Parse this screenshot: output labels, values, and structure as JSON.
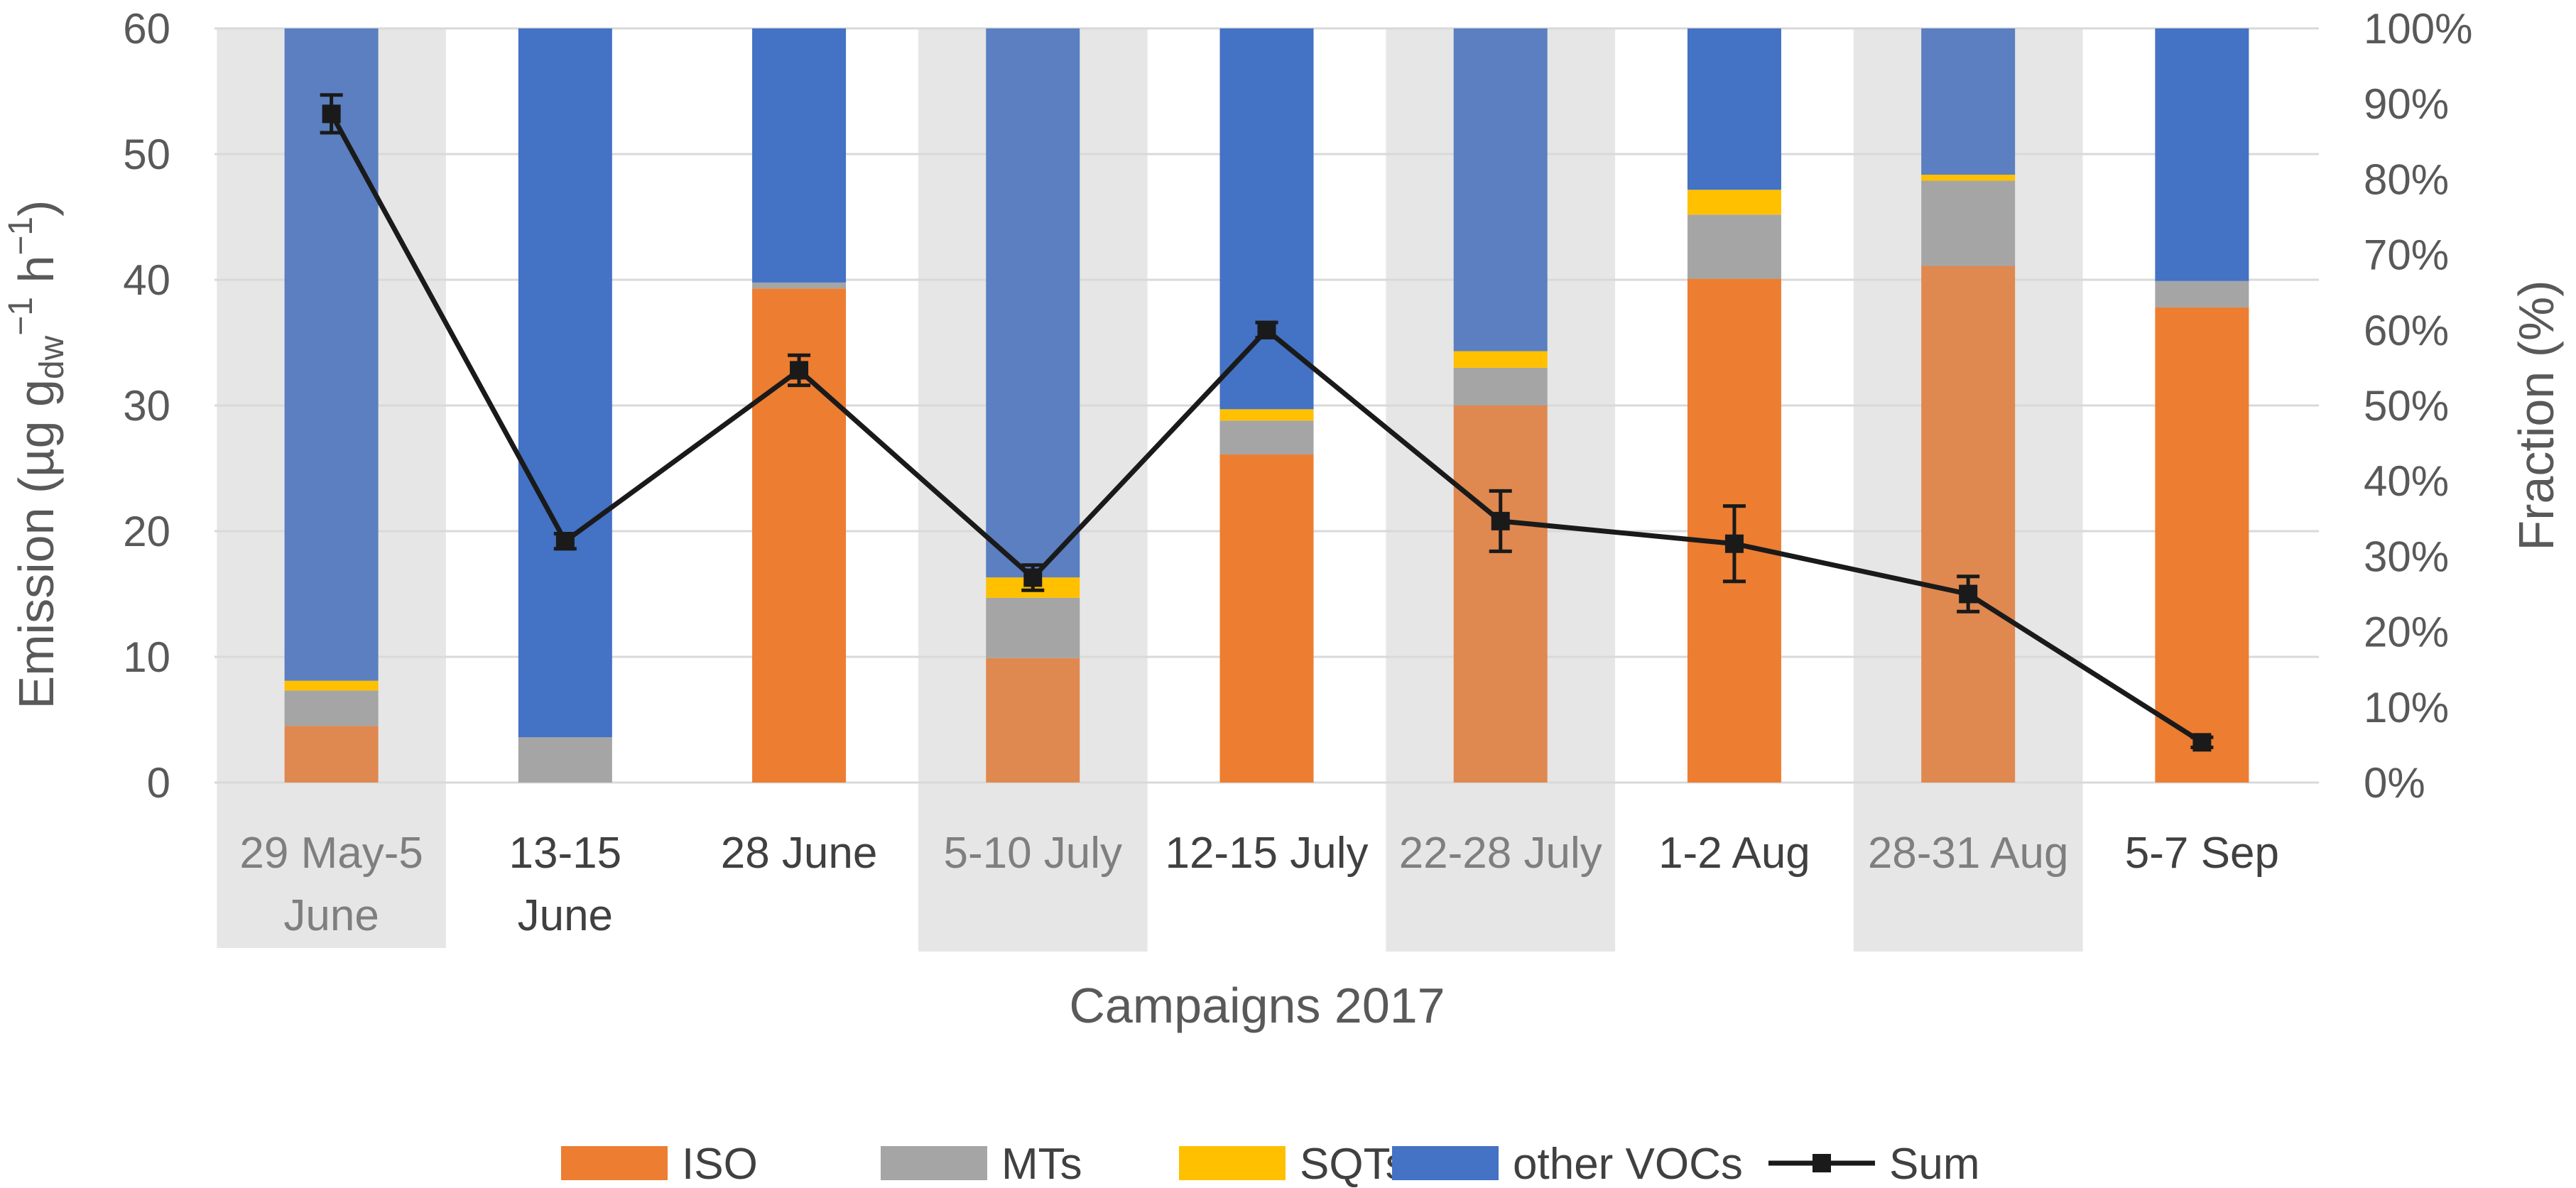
{
  "chart_data": {
    "type": "bar",
    "stacked": true,
    "xlabel": "Campaigns 2017",
    "ylabel": "Emission (µg g",
    "ylabel_sub": "dw",
    "ylabel_sup": "−1",
    "ylabel_unit": " h",
    "ylabel_sup2": "−1",
    "ylabel_close": ")",
    "y2label": "Fraction (%)",
    "ylim": [
      0,
      60
    ],
    "y2lim": [
      0,
      100
    ],
    "yticks": [
      "0",
      "10",
      "20",
      "30",
      "40",
      "50",
      "60"
    ],
    "y2ticks": [
      "0%",
      "10%",
      "20%",
      "30%",
      "40%",
      "50%",
      "60%",
      "70%",
      "80%",
      "90%",
      "100%"
    ],
    "categories": [
      [
        "29 May-5",
        "June"
      ],
      [
        "13-15",
        "June"
      ],
      [
        "28 June"
      ],
      [
        "5-10 July"
      ],
      [
        "12-15 July"
      ],
      [
        "22-28 July"
      ],
      [
        "1-2 Aug"
      ],
      [
        "28-31 Aug"
      ],
      [
        "5-7 Sep"
      ]
    ],
    "shaded": [
      true,
      false,
      false,
      true,
      false,
      true,
      false,
      true,
      false
    ],
    "series": [
      {
        "name": "ISO",
        "axis": "right",
        "values": [
          7.5,
          0,
          65.5,
          16.5,
          43.5,
          50,
          66.8,
          68.5,
          63
        ]
      },
      {
        "name": "MTs",
        "axis": "right",
        "values": [
          4.7,
          6,
          0.8,
          8,
          4.5,
          5,
          8.5,
          11.3,
          3.5
        ]
      },
      {
        "name": "SQTs",
        "axis": "right",
        "values": [
          1.3,
          0,
          0,
          2.7,
          1.5,
          2.2,
          3.3,
          0.8,
          0
        ]
      },
      {
        "name": "other VOCs",
        "axis": "right",
        "values": [
          86.5,
          94,
          33.7,
          72.8,
          50.5,
          42.8,
          21.4,
          19.4,
          33.5
        ]
      }
    ],
    "sum": {
      "name": "Sum",
      "axis": "left",
      "values": [
        53.2,
        19.2,
        32.8,
        16.3,
        36.0,
        20.8,
        19.0,
        15.0,
        3.2
      ],
      "errors": [
        1.5,
        0.6,
        1.2,
        1.0,
        0.6,
        2.4,
        3.0,
        1.4,
        0.4
      ]
    },
    "colors": {
      "ISO": "#ED7D31",
      "MTs": "#A5A5A5",
      "SQTs": "#FFC000",
      "other VOCs": "#4472C4",
      "ISO_shaded": "#DF8850",
      "other VOCs_shaded": "#5B7FC0",
      "Sum": "#1a1a1a",
      "shade": "#E7E6E6",
      "shaded_label": "#7F7F7F",
      "label": "#404040",
      "grid": "#D9D9D9"
    },
    "legend": [
      "ISO",
      "MTs",
      "SQTs",
      "other VOCs",
      "Sum"
    ],
    "legend_position": "bottom"
  }
}
